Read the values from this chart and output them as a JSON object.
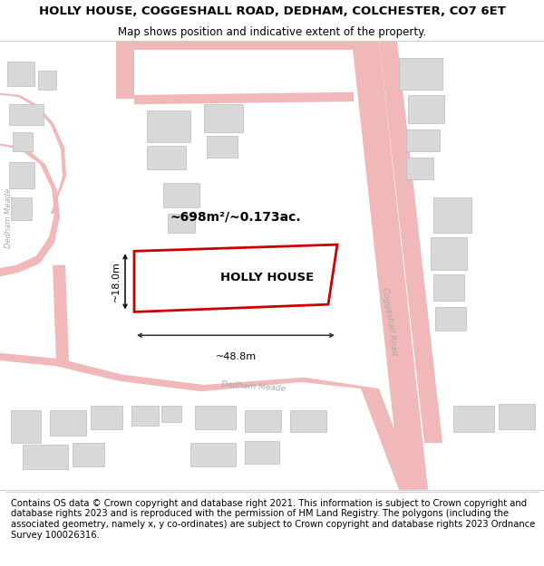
{
  "title": "HOLLY HOUSE, COGGESHALL ROAD, DEDHAM, COLCHESTER, CO7 6ET",
  "subtitle": "Map shows position and indicative extent of the property.",
  "footer": "Contains OS data © Crown copyright and database right 2021. This information is subject to Crown copyright and database rights 2023 and is reproduced with the permission of HM Land Registry. The polygons (including the associated geometry, namely x, y co-ordinates) are subject to Crown copyright and database rights 2023 Ordnance Survey 100026316.",
  "area_label": "~698m²/~0.173ac.",
  "width_label": "~48.8m",
  "height_label": "~18.0m",
  "property_label": "HOLLY HOUSE",
  "map_bg": "#ffffff",
  "road_color": "#f0b8b8",
  "building_color": "#d8d8d8",
  "building_edge": "#bbbbbb",
  "property_outline_color": "#cc0000",
  "street_label_color": "#aaaaaa",
  "title_fontsize": 9.5,
  "subtitle_fontsize": 8.5,
  "footer_fontsize": 7.2,
  "road_lw": 0.8
}
